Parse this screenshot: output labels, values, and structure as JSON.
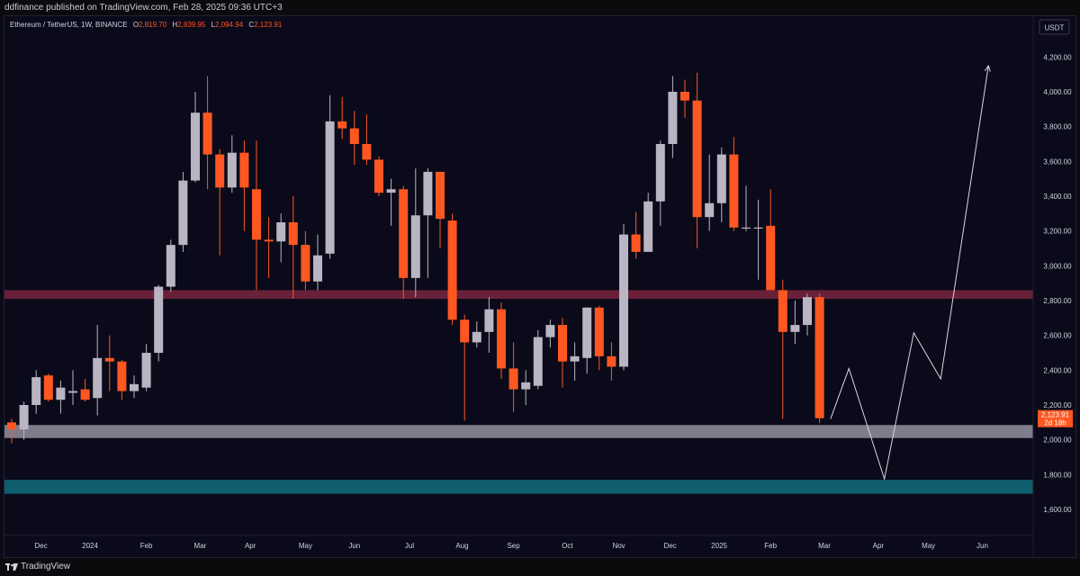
{
  "header": {
    "publisher_line": "ddfinance published on TradingView.com, Feb 28, 2025 09:36 UTC+3"
  },
  "legend": {
    "symbol_line": "Ethereum / TetherUS, 1W, BINANCE",
    "open_label": "O",
    "open_value": "2,819.70",
    "high_label": "H",
    "high_value": "2,839.95",
    "low_label": "L",
    "low_value": "2,094.94",
    "close_label": "C",
    "close_value": "2,123.91"
  },
  "currency_button": "USDT",
  "price_tag": {
    "value": "2,123.91",
    "countdown": "2d 18h"
  },
  "footer": {
    "brand": "TradingView"
  },
  "colors": {
    "background": "#0a0a1a",
    "up": "#b9b5c2",
    "down": "#ff5722",
    "resistance_zone": "#7a2440",
    "support_zone": "#8c8a98",
    "lower_support_zone": "#0f5e6e",
    "projection": "#d8d8e0",
    "text": "#d1d4dc"
  },
  "chart_data": {
    "type": "candlestick",
    "title": "Ethereum / TetherUS, 1W, BINANCE",
    "timeframe": "1W",
    "y_axis_ticks": [
      "1,600.00",
      "1,800.00",
      "2,000.00",
      "2,200.00",
      "2,400.00",
      "2,600.00",
      "2,800.00",
      "3,000.00",
      "3,200.00",
      "3,400.00",
      "3,600.00",
      "3,800.00",
      "4,000.00",
      "4,200.00"
    ],
    "y_axis_values": [
      1600,
      1800,
      2000,
      2200,
      2400,
      2600,
      2800,
      3000,
      3200,
      3400,
      3600,
      3800,
      4000,
      4200
    ],
    "ylim": [
      1400,
      4300
    ],
    "x_axis_labels": [
      "Dec",
      "2024",
      "Feb",
      "Mar",
      "Apr",
      "May",
      "Jun",
      "Jul",
      "Aug",
      "Sep",
      "Oct",
      "Nov",
      "Dec",
      "2025",
      "Feb",
      "Mar",
      "Apr",
      "May",
      "Jun"
    ],
    "x_axis_label_weeks": [
      2.4,
      6.4,
      11.0,
      15.4,
      19.5,
      24.0,
      28.0,
      32.5,
      36.8,
      41.0,
      45.4,
      49.6,
      53.8,
      57.8,
      62.0,
      66.4,
      70.8,
      74.9,
      79.3
    ],
    "candles": [
      {
        "o": 2100,
        "h": 2120,
        "l": 1980,
        "c": 2060
      },
      {
        "o": 2060,
        "h": 2220,
        "l": 2000,
        "c": 2200
      },
      {
        "o": 2200,
        "h": 2400,
        "l": 2150,
        "c": 2360
      },
      {
        "o": 2370,
        "h": 2380,
        "l": 2220,
        "c": 2230
      },
      {
        "o": 2230,
        "h": 2340,
        "l": 2150,
        "c": 2300
      },
      {
        "o": 2270,
        "h": 2400,
        "l": 2200,
        "c": 2280
      },
      {
        "o": 2290,
        "h": 2350,
        "l": 2220,
        "c": 2230
      },
      {
        "o": 2240,
        "h": 2660,
        "l": 2140,
        "c": 2470
      },
      {
        "o": 2470,
        "h": 2600,
        "l": 2280,
        "c": 2450
      },
      {
        "o": 2450,
        "h": 2460,
        "l": 2230,
        "c": 2280
      },
      {
        "o": 2280,
        "h": 2370,
        "l": 2240,
        "c": 2320
      },
      {
        "o": 2300,
        "h": 2550,
        "l": 2280,
        "c": 2500
      },
      {
        "o": 2500,
        "h": 2890,
        "l": 2450,
        "c": 2880
      },
      {
        "o": 2880,
        "h": 3150,
        "l": 2850,
        "c": 3120
      },
      {
        "o": 3120,
        "h": 3540,
        "l": 3080,
        "c": 3490
      },
      {
        "o": 3490,
        "h": 4000,
        "l": 3480,
        "c": 3880
      },
      {
        "o": 3880,
        "h": 4090,
        "l": 3440,
        "c": 3640
      },
      {
        "o": 3640,
        "h": 3670,
        "l": 3060,
        "c": 3450
      },
      {
        "o": 3450,
        "h": 3750,
        "l": 3420,
        "c": 3650
      },
      {
        "o": 3650,
        "h": 3720,
        "l": 3200,
        "c": 3450
      },
      {
        "o": 3440,
        "h": 3720,
        "l": 2860,
        "c": 3150
      },
      {
        "o": 3150,
        "h": 3280,
        "l": 2930,
        "c": 3140
      },
      {
        "o": 3140,
        "h": 3300,
        "l": 3020,
        "c": 3250
      },
      {
        "o": 3250,
        "h": 3400,
        "l": 2810,
        "c": 3120
      },
      {
        "o": 3120,
        "h": 3200,
        "l": 2860,
        "c": 2910
      },
      {
        "o": 2910,
        "h": 3180,
        "l": 2860,
        "c": 3060
      },
      {
        "o": 3070,
        "h": 3980,
        "l": 3040,
        "c": 3830
      },
      {
        "o": 3830,
        "h": 3970,
        "l": 3730,
        "c": 3790
      },
      {
        "o": 3790,
        "h": 3890,
        "l": 3580,
        "c": 3700
      },
      {
        "o": 3700,
        "h": 3870,
        "l": 3580,
        "c": 3610
      },
      {
        "o": 3610,
        "h": 3630,
        "l": 3400,
        "c": 3420
      },
      {
        "o": 3420,
        "h": 3500,
        "l": 3230,
        "c": 3440
      },
      {
        "o": 3440,
        "h": 3460,
        "l": 2810,
        "c": 2930
      },
      {
        "o": 2930,
        "h": 3560,
        "l": 2820,
        "c": 3290
      },
      {
        "o": 3290,
        "h": 3560,
        "l": 2930,
        "c": 3540
      },
      {
        "o": 3540,
        "h": 3540,
        "l": 3100,
        "c": 3270
      },
      {
        "o": 3260,
        "h": 3300,
        "l": 2660,
        "c": 2690
      },
      {
        "o": 2690,
        "h": 2720,
        "l": 2110,
        "c": 2560
      },
      {
        "o": 2560,
        "h": 2680,
        "l": 2530,
        "c": 2620
      },
      {
        "o": 2620,
        "h": 2820,
        "l": 2500,
        "c": 2750
      },
      {
        "o": 2750,
        "h": 2790,
        "l": 2350,
        "c": 2410
      },
      {
        "o": 2410,
        "h": 2560,
        "l": 2160,
        "c": 2290
      },
      {
        "o": 2290,
        "h": 2400,
        "l": 2200,
        "c": 2330
      },
      {
        "o": 2310,
        "h": 2630,
        "l": 2290,
        "c": 2590
      },
      {
        "o": 2590,
        "h": 2690,
        "l": 2530,
        "c": 2660
      },
      {
        "o": 2660,
        "h": 2700,
        "l": 2300,
        "c": 2450
      },
      {
        "o": 2450,
        "h": 2560,
        "l": 2340,
        "c": 2480
      },
      {
        "o": 2470,
        "h": 2760,
        "l": 2380,
        "c": 2760
      },
      {
        "o": 2760,
        "h": 2770,
        "l": 2400,
        "c": 2480
      },
      {
        "o": 2480,
        "h": 2560,
        "l": 2340,
        "c": 2420
      },
      {
        "o": 2420,
        "h": 3240,
        "l": 2400,
        "c": 3180
      },
      {
        "o": 3180,
        "h": 3310,
        "l": 3040,
        "c": 3080
      },
      {
        "o": 3080,
        "h": 3420,
        "l": 3080,
        "c": 3370
      },
      {
        "o": 3370,
        "h": 3720,
        "l": 3230,
        "c": 3700
      },
      {
        "o": 3700,
        "h": 4090,
        "l": 3620,
        "c": 4000
      },
      {
        "o": 4000,
        "h": 4070,
        "l": 3850,
        "c": 3950
      },
      {
        "o": 3950,
        "h": 4110,
        "l": 3100,
        "c": 3280
      },
      {
        "o": 3280,
        "h": 3640,
        "l": 3200,
        "c": 3360
      },
      {
        "o": 3360,
        "h": 3680,
        "l": 3250,
        "c": 3640
      },
      {
        "o": 3640,
        "h": 3740,
        "l": 3200,
        "c": 3220
      },
      {
        "o": 3220,
        "h": 3460,
        "l": 3200,
        "c": 3220
      },
      {
        "o": 3220,
        "h": 3380,
        "l": 2920,
        "c": 3220
      },
      {
        "o": 3230,
        "h": 3440,
        "l": 2870,
        "c": 2860
      },
      {
        "o": 2860,
        "h": 2920,
        "l": 2120,
        "c": 2620
      },
      {
        "o": 2620,
        "h": 2800,
        "l": 2550,
        "c": 2660
      },
      {
        "o": 2660,
        "h": 2840,
        "l": 2600,
        "c": 2820
      },
      {
        "o": 2820,
        "h": 2840,
        "l": 2095,
        "c": 2124
      }
    ],
    "annotations": {
      "resistance_zone": [
        2810,
        2860
      ],
      "support_zone": [
        2010,
        2085
      ],
      "lower_support_zone": [
        1690,
        1770
      ],
      "projection_path": [
        {
          "week": 66.9,
          "price": 2120
        },
        {
          "week": 68.4,
          "price": 2410
        },
        {
          "week": 71.3,
          "price": 1775
        },
        {
          "week": 73.7,
          "price": 2615
        },
        {
          "week": 75.9,
          "price": 2350
        },
        {
          "week": 79.8,
          "price": 4150
        }
      ]
    }
  }
}
